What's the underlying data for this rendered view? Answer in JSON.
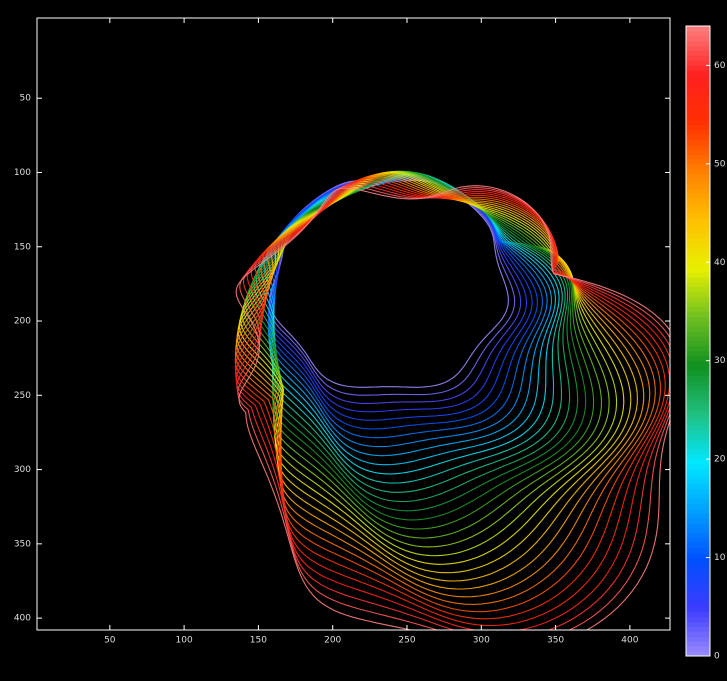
{
  "chart_data": {
    "type": "contour",
    "xlim": [
      1,
      427
    ],
    "ylim": [
      -4,
      408
    ],
    "y_reversed": true,
    "xticks": [
      50,
      100,
      150,
      200,
      250,
      300,
      350,
      400
    ],
    "yticks": [
      50,
      100,
      150,
      200,
      250,
      300,
      350,
      400
    ],
    "clim": [
      0,
      64
    ],
    "cticks": [
      0,
      10,
      20,
      30,
      40,
      50,
      60
    ],
    "colormap": [
      "#9a8cff",
      "#3b3bff",
      "#0050ff",
      "#00a0ff",
      "#00e8ff",
      "#20c080",
      "#109020",
      "#70c020",
      "#e8f000",
      "#ffc000",
      "#ff8000",
      "#ff3000",
      "#ff2020",
      "#ff8080"
    ],
    "levels": [
      0,
      2,
      4,
      6,
      8,
      10,
      12,
      14,
      16,
      18,
      20,
      22,
      24,
      26,
      28,
      30,
      32,
      34,
      36,
      38,
      40,
      42,
      44,
      46,
      48,
      50,
      52,
      54,
      56,
      58,
      60,
      62,
      64
    ],
    "background": "#000000"
  }
}
